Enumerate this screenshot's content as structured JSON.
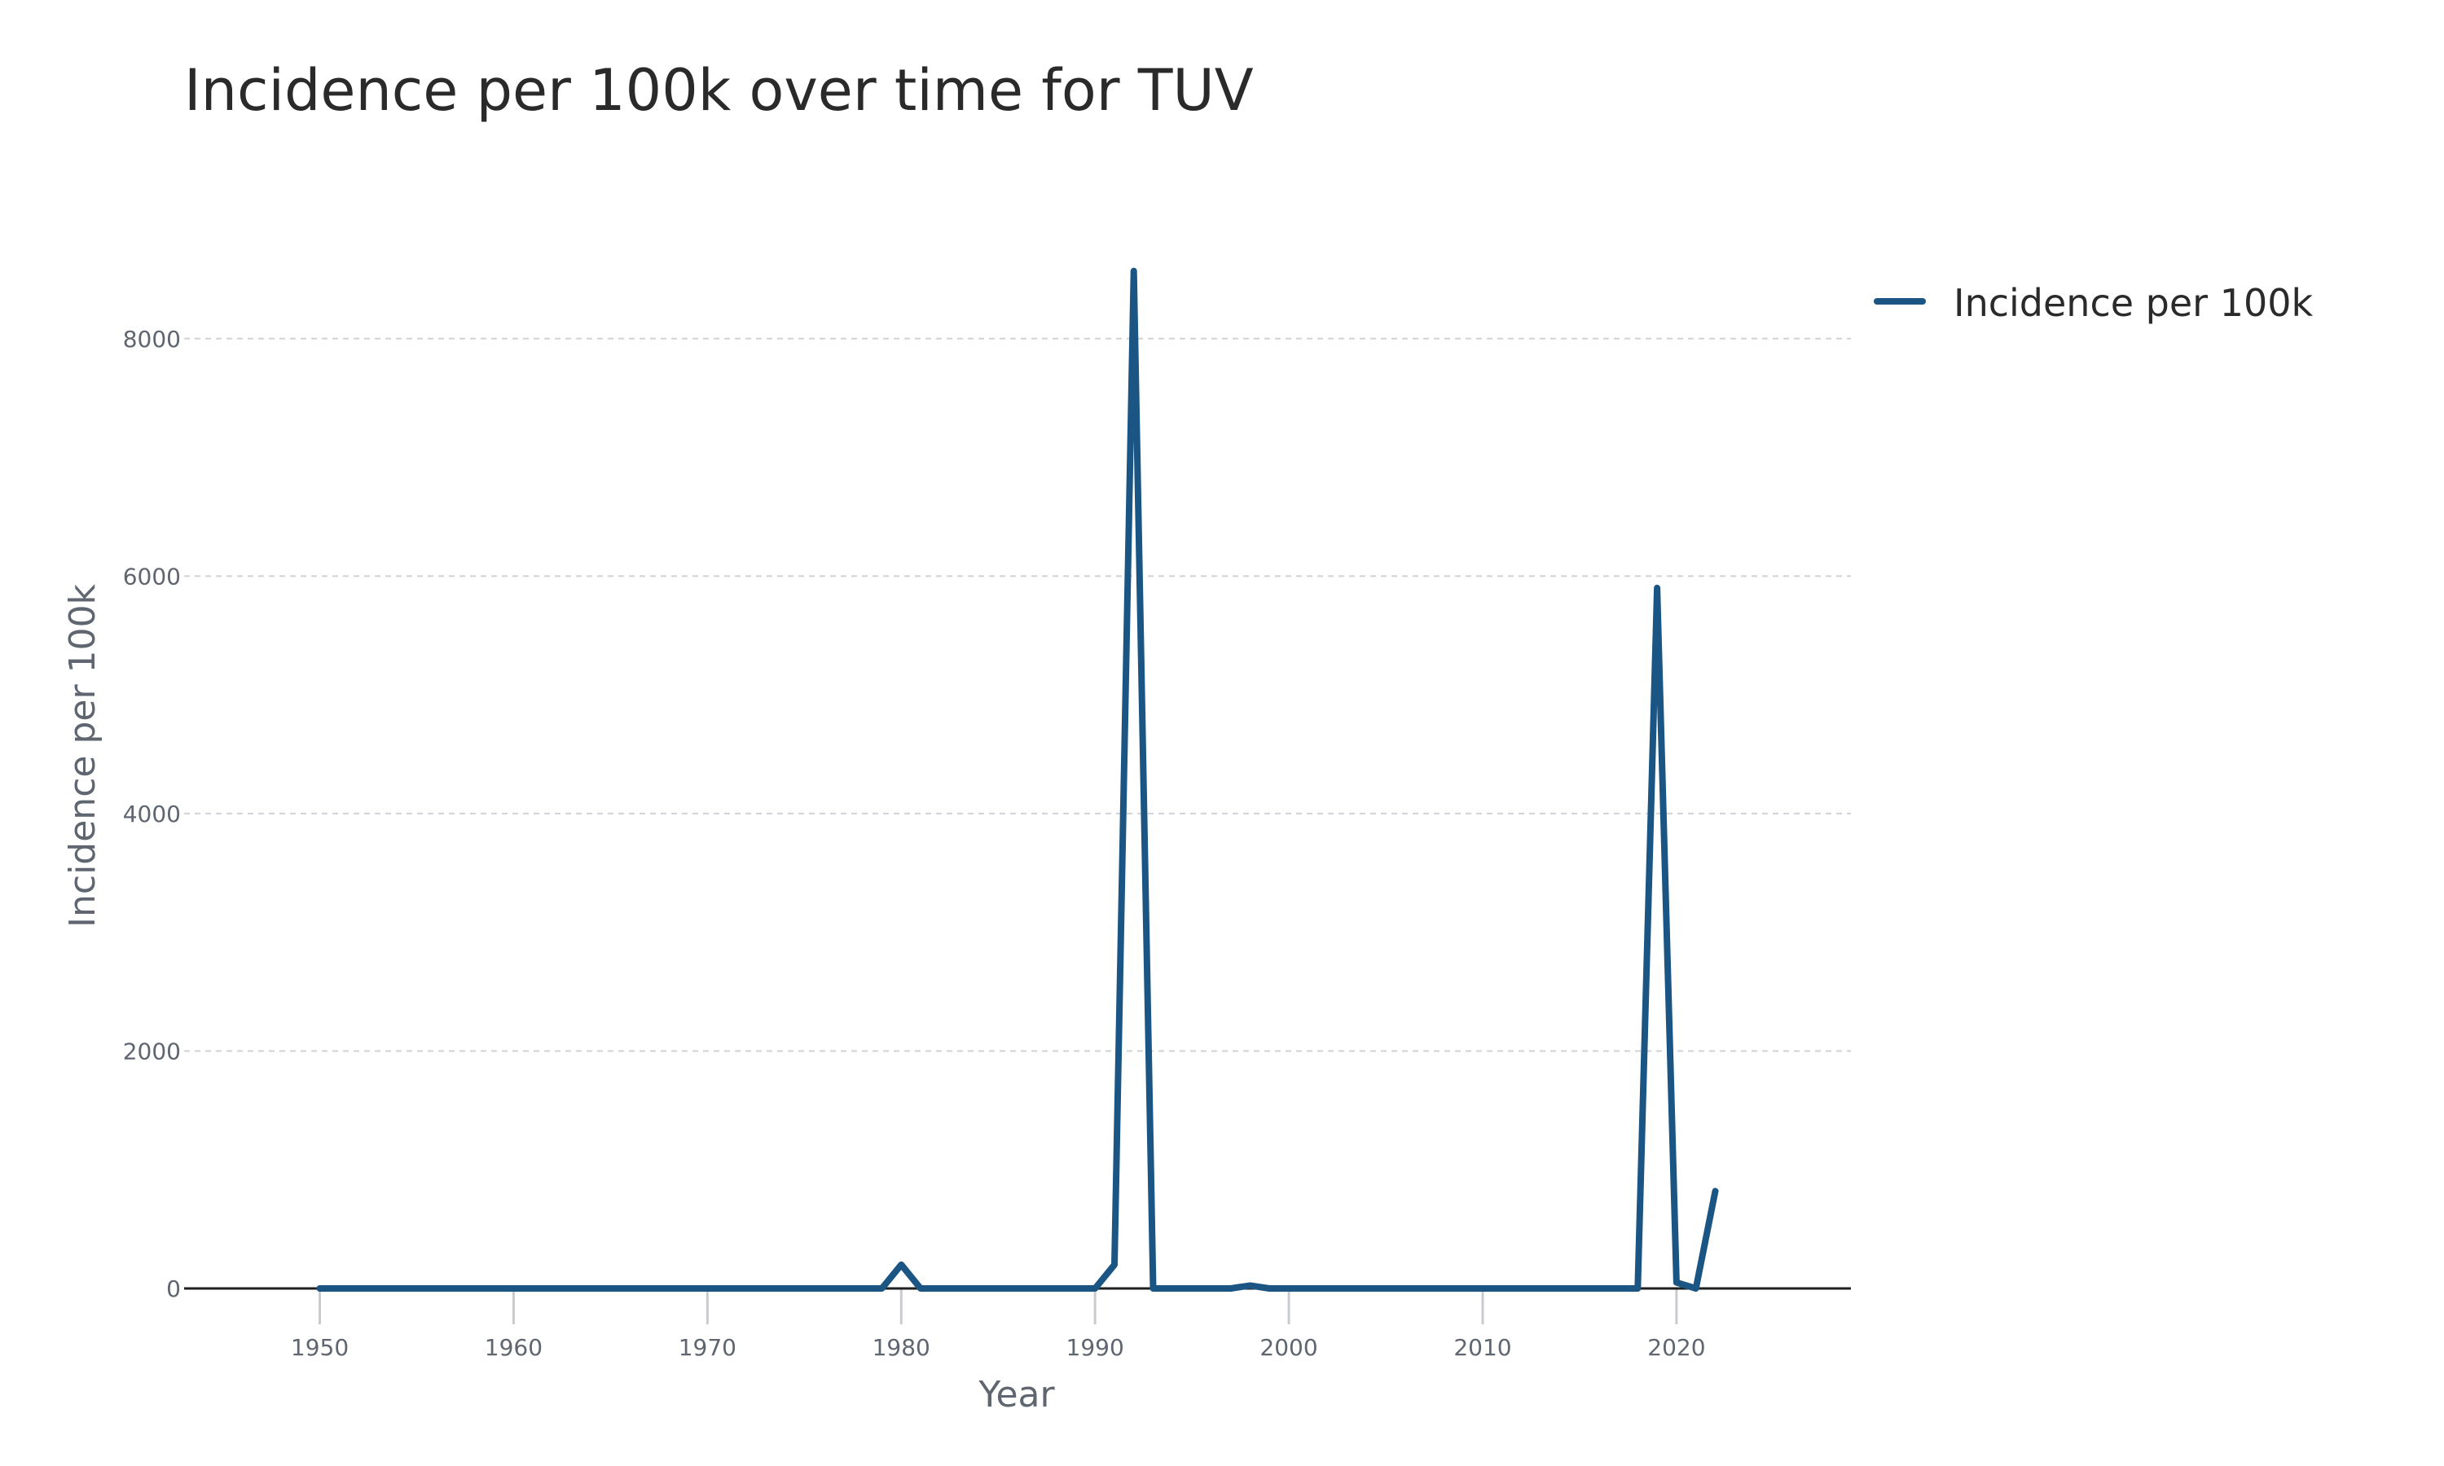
{
  "chart_data": {
    "type": "line",
    "title": "Incidence per 100k over time for TUV",
    "xlabel": "Year",
    "ylabel": "Incidence per 100k",
    "xlim": [
      1943,
      2029
    ],
    "ylim": [
      0,
      9000
    ],
    "xticks": [
      1950,
      1960,
      1970,
      1980,
      1990,
      2000,
      2010,
      2020
    ],
    "yticks": [
      0,
      2000,
      4000,
      6000,
      8000
    ],
    "grid": true,
    "legend_position": "top-right",
    "colors": {
      "series": "#1b5583"
    },
    "series": [
      {
        "name": "Incidence per 100k",
        "x": [
          1950,
          1951,
          1952,
          1953,
          1954,
          1955,
          1956,
          1957,
          1958,
          1959,
          1960,
          1961,
          1962,
          1963,
          1964,
          1965,
          1966,
          1967,
          1968,
          1969,
          1970,
          1971,
          1972,
          1973,
          1974,
          1975,
          1976,
          1977,
          1978,
          1979,
          1980,
          1981,
          1982,
          1983,
          1984,
          1985,
          1986,
          1987,
          1988,
          1989,
          1990,
          1991,
          1992,
          1993,
          1994,
          1995,
          1996,
          1997,
          1998,
          1999,
          2000,
          2001,
          2002,
          2003,
          2004,
          2005,
          2006,
          2007,
          2008,
          2009,
          2010,
          2011,
          2012,
          2013,
          2014,
          2015,
          2016,
          2017,
          2018,
          2019,
          2020,
          2021,
          2022
        ],
        "y": [
          0,
          0,
          0,
          0,
          0,
          0,
          0,
          0,
          0,
          0,
          0,
          0,
          0,
          0,
          0,
          0,
          0,
          0,
          0,
          0,
          0,
          0,
          0,
          0,
          0,
          0,
          0,
          0,
          0,
          0,
          200,
          0,
          0,
          0,
          0,
          0,
          0,
          0,
          0,
          0,
          0,
          200,
          8570,
          0,
          0,
          0,
          0,
          0,
          25,
          0,
          0,
          0,
          0,
          0,
          0,
          0,
          0,
          0,
          0,
          0,
          0,
          0,
          0,
          0,
          0,
          0,
          0,
          0,
          0,
          5900,
          50,
          0,
          820
        ]
      }
    ]
  }
}
